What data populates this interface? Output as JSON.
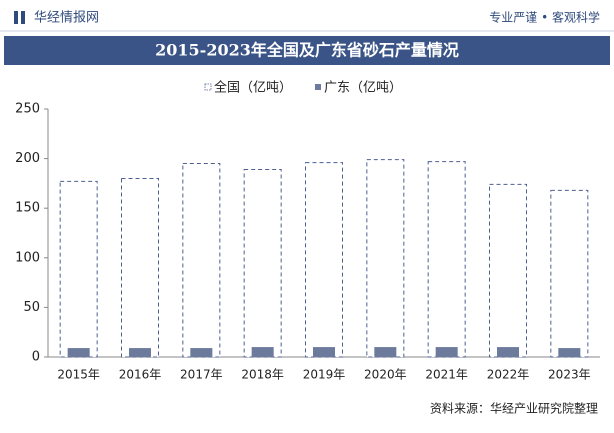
{
  "header": {
    "brand": "华经情报网",
    "slogan": "专业严谨 • 客观科学"
  },
  "chart_data": {
    "type": "bar",
    "title": "2015-2023年全国及广东省砂石产量情况",
    "categories": [
      "2015年",
      "2016年",
      "2017年",
      "2018年",
      "2019年",
      "2020年",
      "2021年",
      "2022年",
      "2023年"
    ],
    "series": [
      {
        "name": "全国（亿吨）",
        "color": "#4f5f92",
        "outline": "dashed",
        "values": [
          177,
          180,
          195,
          189,
          196,
          199,
          197,
          174,
          168
        ]
      },
      {
        "name": "广东（亿吨）",
        "color": "#6c7a9c",
        "values": [
          9,
          9,
          9,
          10,
          10,
          10,
          10,
          10,
          9
        ]
      }
    ],
    "ylim": [
      0,
      250
    ],
    "yticks": [
      0,
      50,
      100,
      150,
      200,
      250
    ],
    "grid": false
  },
  "source": "资料来源：华经产业研究院整理"
}
